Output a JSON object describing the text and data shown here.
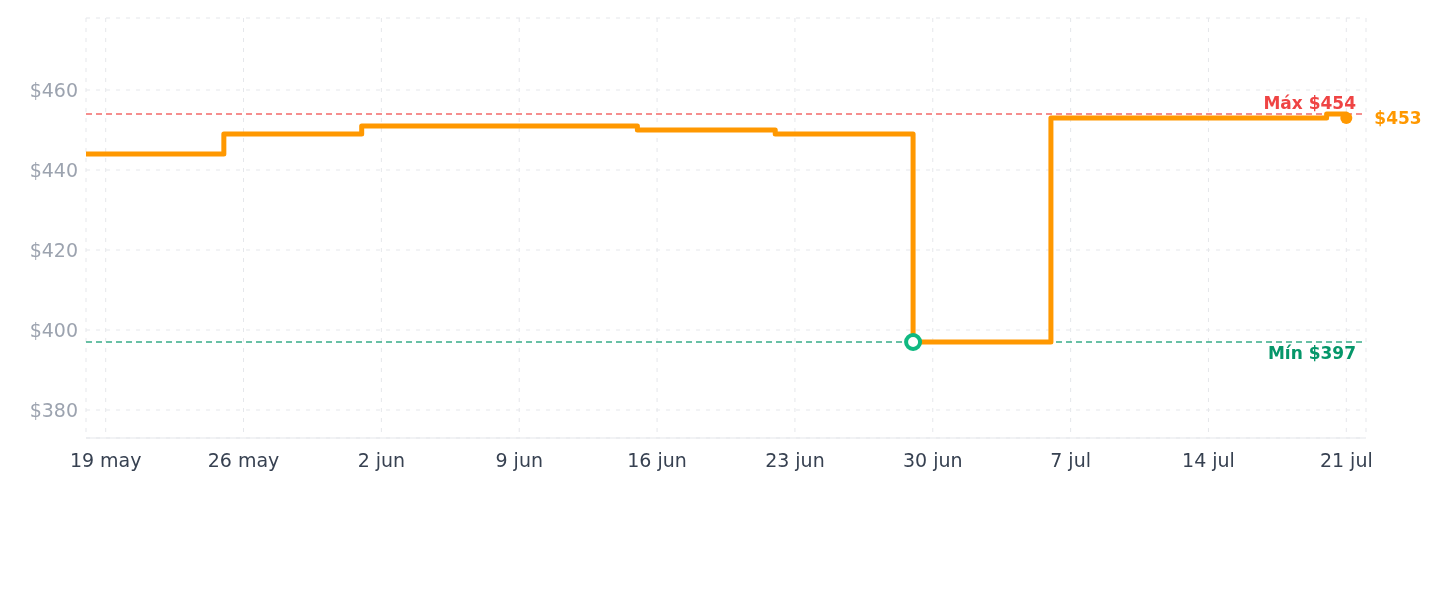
{
  "chart_data": {
    "type": "step",
    "xlim": [
      "--05-18",
      "--07-22"
    ],
    "ylim": [
      373,
      478
    ],
    "xticks": [
      {
        "value": "--05-19",
        "label": "19 may"
      },
      {
        "value": "--05-26",
        "label": "26 may"
      },
      {
        "value": "--06-02",
        "label": "2 jun"
      },
      {
        "value": "--06-09",
        "label": "9 jun"
      },
      {
        "value": "--06-16",
        "label": "16 jun"
      },
      {
        "value": "--06-23",
        "label": "23 jun"
      },
      {
        "value": "--06-30",
        "label": "30 jun"
      },
      {
        "value": "--07-07",
        "label": "7 jul"
      },
      {
        "value": "--07-14",
        "label": "14 jul"
      },
      {
        "value": "--07-21",
        "label": "21 jul"
      }
    ],
    "yticks": [
      {
        "value": 380,
        "label": "$380"
      },
      {
        "value": 400,
        "label": "$400"
      },
      {
        "value": 420,
        "label": "$420"
      },
      {
        "value": 440,
        "label": "$440"
      },
      {
        "value": 460,
        "label": "$460"
      }
    ],
    "grid": true,
    "line_style": "solid",
    "marker": "none",
    "series": [
      {
        "type": "step",
        "color": "#ff9800",
        "x": [
          "--05-18",
          "--05-25",
          "--06-01",
          "--06-15",
          "--06-22",
          "--06-29",
          "--07-06",
          "--07-20",
          "--07-21"
        ],
        "values": [
          444,
          449,
          451,
          450,
          449,
          397,
          453,
          454,
          453
        ]
      },
      {
        "type": "scatter",
        "color": "#10b981",
        "marker": "circle",
        "x": [
          "--06-29"
        ],
        "values": [
          397
        ]
      }
    ],
    "ref_lines": [
      {
        "axis": "y",
        "value": 454,
        "label": "Máx $454",
        "color": "#ef4444",
        "line_style": "dashed"
      },
      {
        "axis": "y",
        "value": 397,
        "label": "Mín $397",
        "color": "#059669",
        "line_style": "dashed"
      }
    ],
    "annotations": [
      {
        "text": "$453",
        "x": "--07-21",
        "y": 453
      }
    ]
  }
}
